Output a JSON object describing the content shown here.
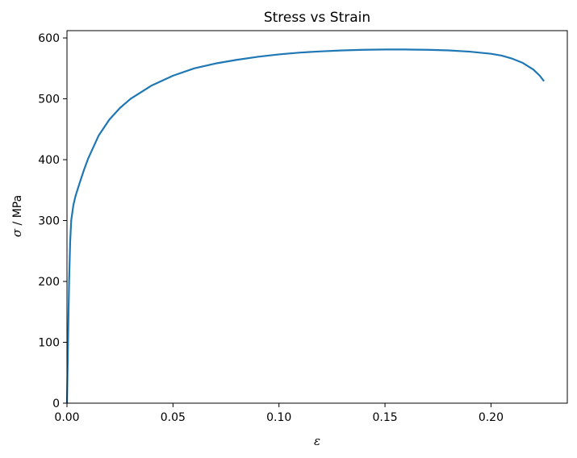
{
  "chart_data": {
    "type": "line",
    "title": "Stress vs Strain",
    "xlabel": "ε",
    "ylabel_symbol": "σ",
    "ylabel_rest": " / MPa",
    "xlim": [
      0,
      0.236
    ],
    "ylim": [
      0,
      612
    ],
    "xticks": [
      0.0,
      0.05,
      0.1,
      0.15,
      0.2
    ],
    "xtick_labels": [
      "0.00",
      "0.05",
      "0.10",
      "0.15",
      "0.20"
    ],
    "yticks": [
      0,
      100,
      200,
      300,
      400,
      500,
      600
    ],
    "ytick_labels": [
      "0",
      "100",
      "200",
      "300",
      "400",
      "500",
      "600"
    ],
    "grid": false,
    "legend": "none",
    "series": [
      {
        "color": "#1f77b4",
        "x": [
          0,
          0.0005,
          0.001,
          0.0015,
          0.002,
          0.003,
          0.004,
          0.006,
          0.008,
          0.01,
          0.015,
          0.02,
          0.025,
          0.03,
          0.04,
          0.05,
          0.06,
          0.07,
          0.08,
          0.09,
          0.1,
          0.11,
          0.12,
          0.13,
          0.14,
          0.15,
          0.16,
          0.17,
          0.18,
          0.19,
          0.2,
          0.205,
          0.21,
          0.215,
          0.22,
          0.223,
          0.225
        ],
        "y": [
          0,
          100,
          200,
          265,
          300,
          325,
          340,
          362,
          383,
          402,
          440,
          466,
          485,
          500,
          522,
          538,
          550,
          558,
          564,
          569,
          573,
          576,
          578,
          579.5,
          580.5,
          581,
          581,
          580.5,
          579.5,
          577.5,
          574,
          571,
          566,
          559,
          548,
          538,
          529
        ]
      }
    ]
  }
}
